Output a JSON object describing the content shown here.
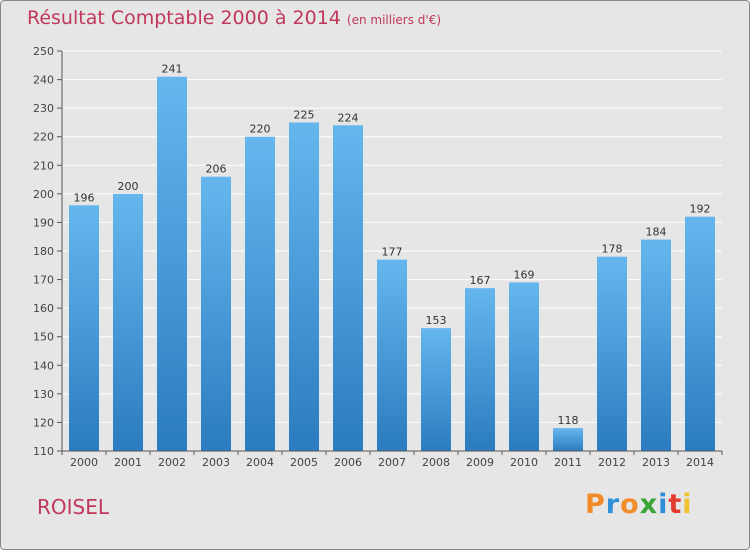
{
  "header": {
    "title": "Résultat Comptable 2000 à 2014",
    "unit": "(en milliers d'€)"
  },
  "footer": {
    "town": "ROISEL"
  },
  "logo": {
    "letters": [
      "P",
      "r",
      "o",
      "x",
      "i",
      "t",
      "i"
    ],
    "colors": [
      "#f28c28",
      "#2f8fd8",
      "#f28c28",
      "#3aa636",
      "#2f8fd8",
      "#e23a2f",
      "#f2c12e"
    ]
  },
  "colors": {
    "bar_top": "#66b6ee",
    "bar_bottom": "#2a7cc0",
    "title": "#c0385b"
  },
  "chart_data": {
    "type": "bar",
    "title": "Résultat Comptable 2000 à 2014",
    "xlabel": "",
    "ylabel": "",
    "categories": [
      "2000",
      "2001",
      "2002",
      "2003",
      "2004",
      "2005",
      "2006",
      "2007",
      "2008",
      "2009",
      "2010",
      "2011",
      "2012",
      "2013",
      "2014"
    ],
    "values": [
      196,
      200,
      241,
      206,
      220,
      225,
      224,
      177,
      153,
      167,
      169,
      118,
      178,
      184,
      192
    ],
    "ylim": [
      110,
      250
    ],
    "yticks": [
      110,
      120,
      130,
      140,
      150,
      160,
      170,
      180,
      190,
      200,
      210,
      220,
      230,
      240,
      250
    ],
    "grid": true
  }
}
